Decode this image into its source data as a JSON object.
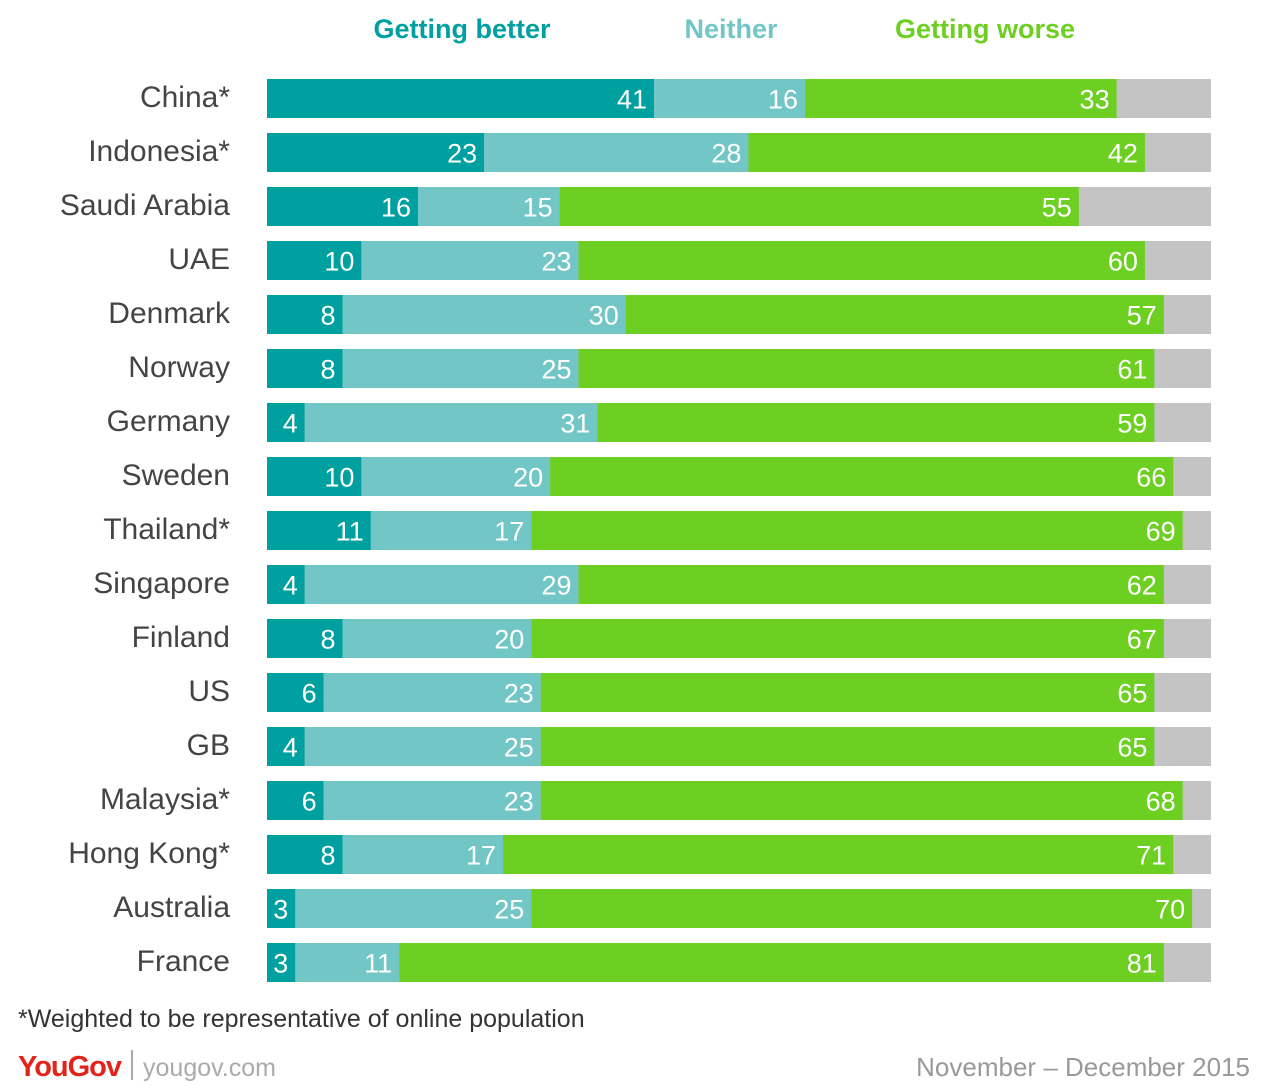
{
  "chart_data": {
    "type": "bar",
    "orientation": "horizontal",
    "stacked": true,
    "legend_position": "top",
    "categories": [
      "China*",
      "Indonesia*",
      "Saudi Arabia",
      "UAE",
      "Denmark",
      "Norway",
      "Germany",
      "Sweden",
      "Thailand*",
      "Singapore",
      "Finland",
      "US",
      "GB",
      "Malaysia*",
      "Hong Kong*",
      "Australia",
      "France"
    ],
    "series": [
      {
        "name": "Getting better",
        "color": "#00a0a0",
        "values": [
          41,
          23,
          16,
          10,
          8,
          8,
          4,
          10,
          11,
          4,
          8,
          6,
          4,
          6,
          8,
          3,
          3
        ]
      },
      {
        "name": "Neither",
        "color": "#73c6c6",
        "values": [
          16,
          28,
          15,
          23,
          30,
          25,
          31,
          20,
          17,
          29,
          20,
          23,
          25,
          23,
          17,
          25,
          11
        ]
      },
      {
        "name": "Getting worse",
        "color": "#6dcf21",
        "values": [
          33,
          42,
          55,
          60,
          57,
          61,
          59,
          66,
          69,
          62,
          67,
          65,
          65,
          68,
          71,
          70,
          81
        ]
      }
    ],
    "remainder_color": "#c4c4c4",
    "xlim": [
      0,
      100
    ]
  },
  "footnote": "*Weighted to be representative of online population",
  "brand": {
    "logo": "YouGov",
    "site": "yougov.com"
  },
  "date_range": "November – December 2015"
}
